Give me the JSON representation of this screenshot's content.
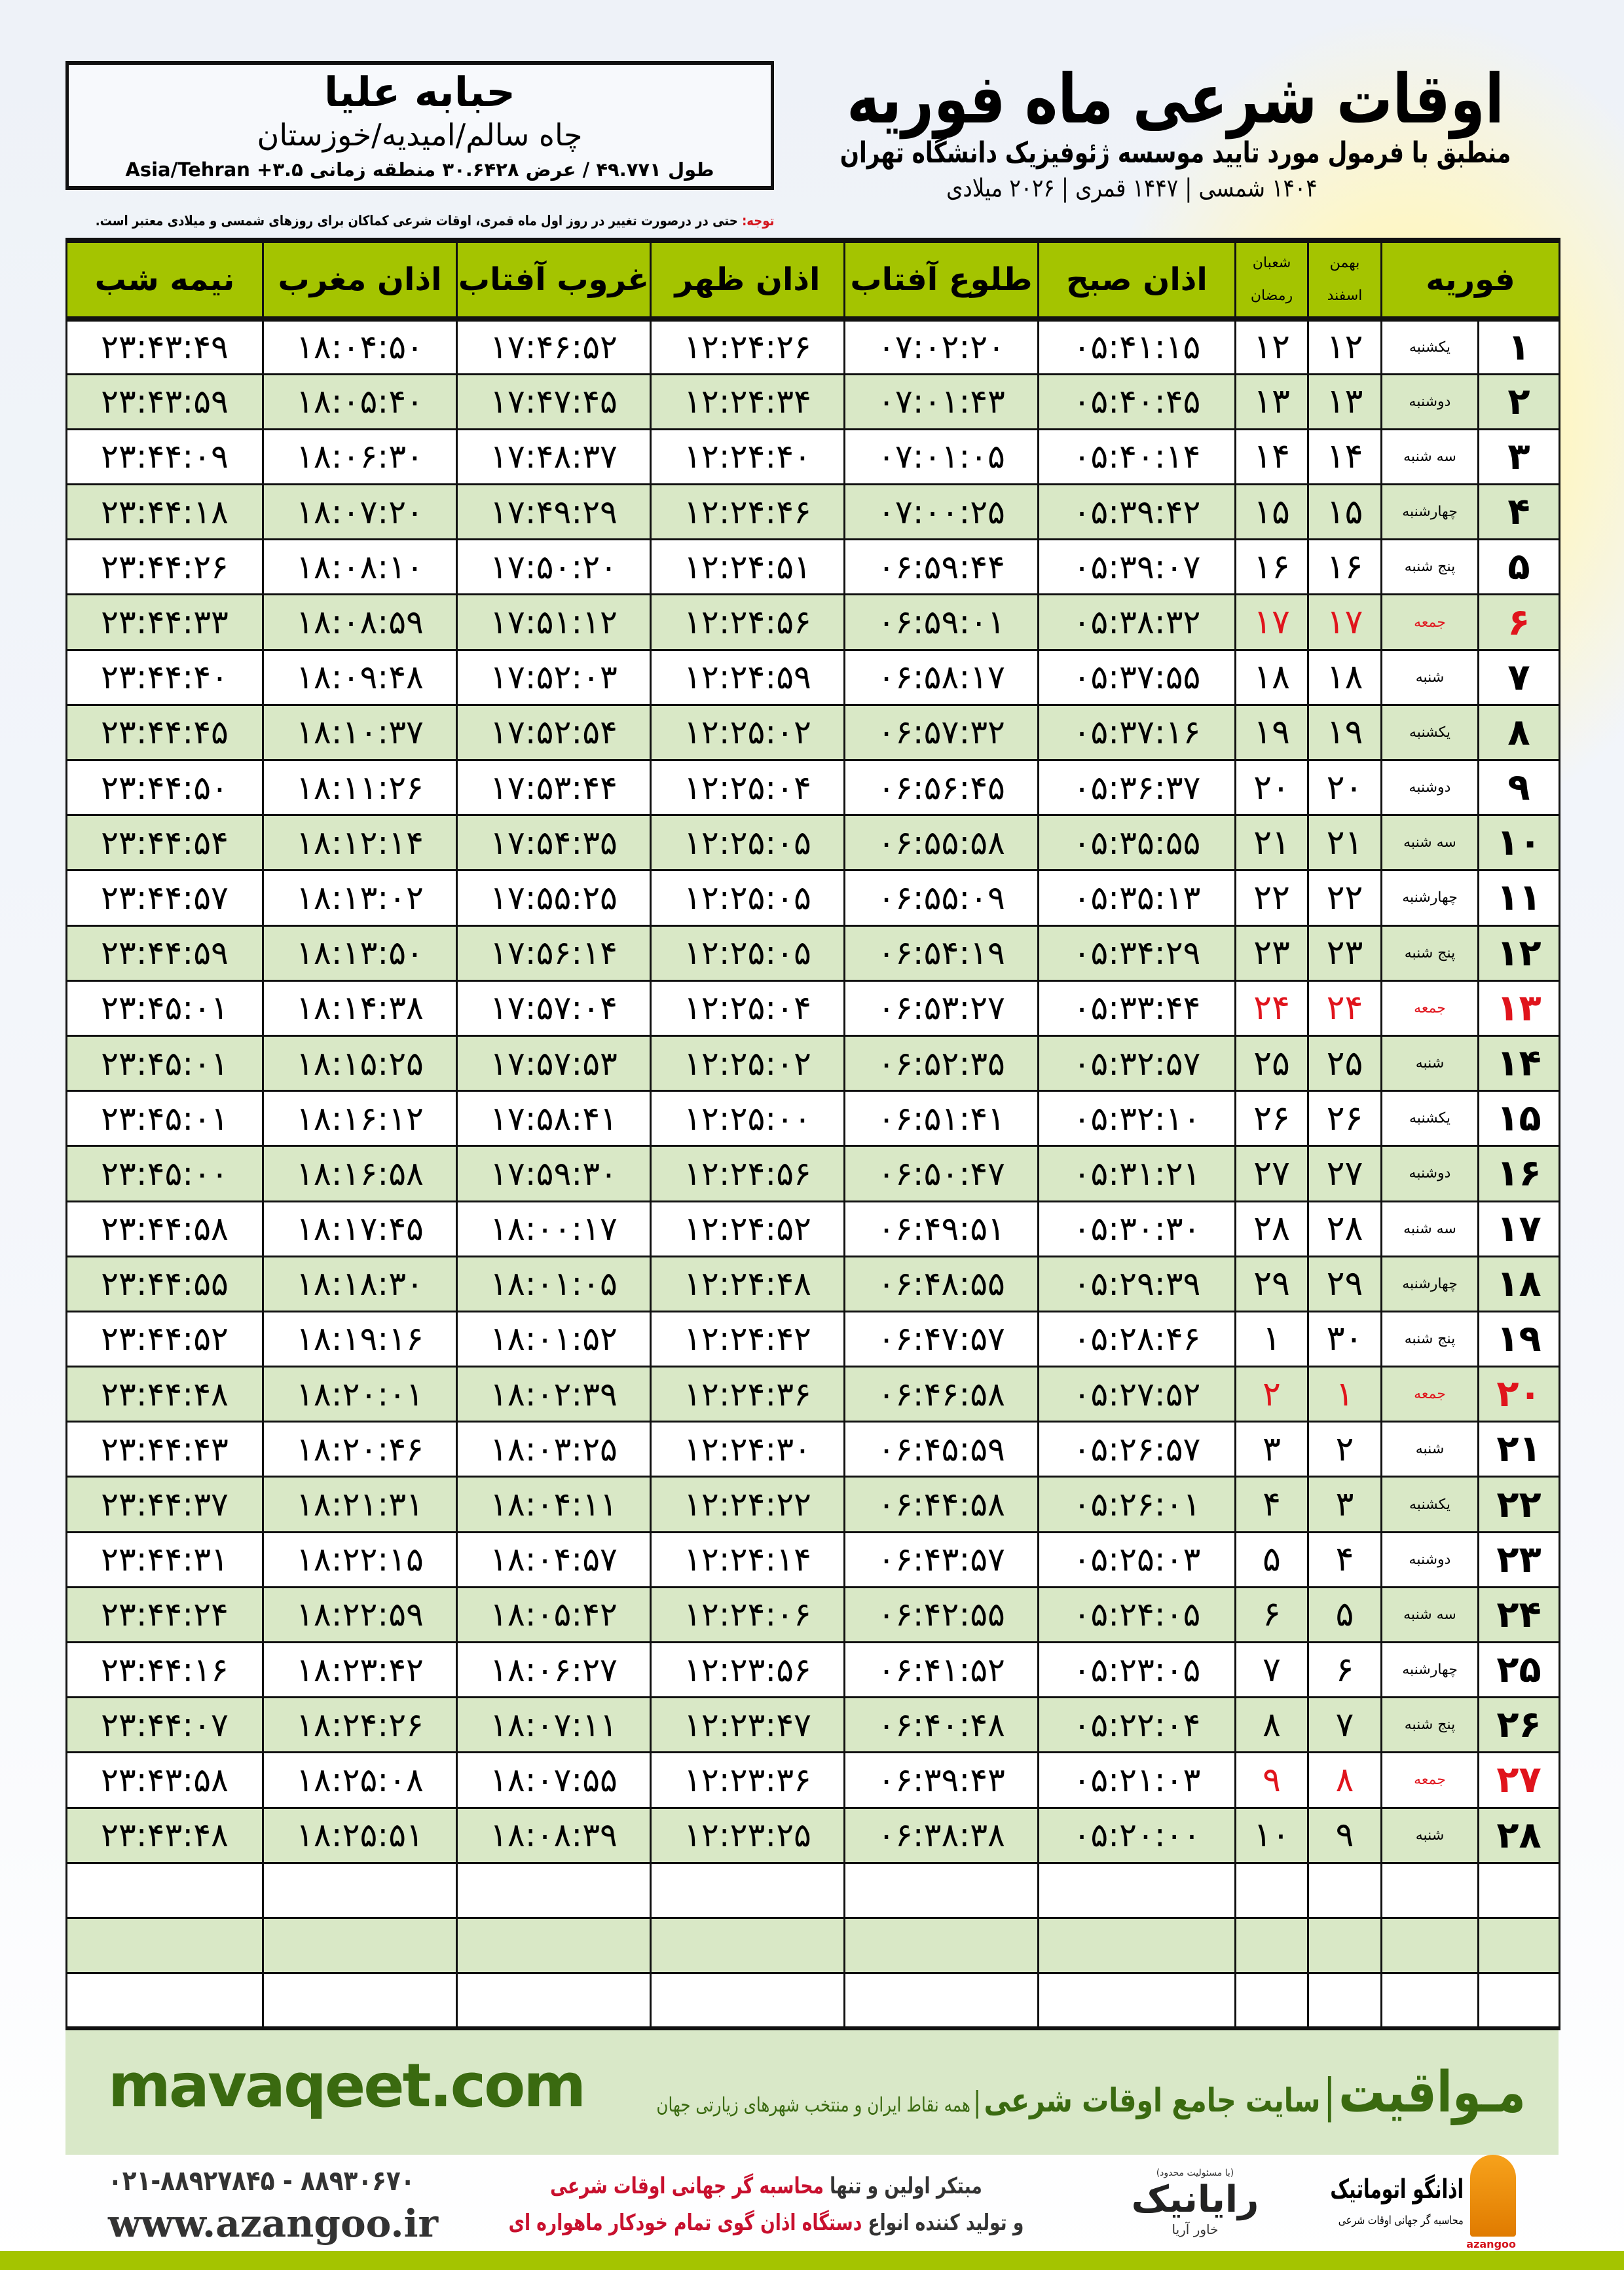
{
  "location": {
    "name": "حبابه علیا",
    "region": "چاه سالم/امیدیه/خوزستان",
    "coords": "طول ۴۹.۷۷۱ / عرض ۳۰.۶۴۲۸ منطقه زمانی ۳.۵+ Asia/Tehran"
  },
  "header": {
    "title": "اوقات شرعی ماه فوریه",
    "subtitle": "منطبق با فرمول مورد تایید موسسه ژئوفیزیک دانشگاه تهران",
    "dateline": "۱۴۰۴ شمسی | ۱۴۴۷ قمری | ۲۰۲۶ میلادی"
  },
  "note": {
    "label": "توجه:",
    "text": " حتی در درصورت تغییر در روز اول ماه قمری، اوقات شرعی کماکان برای روزهای شمسی و میلادی معتبر است."
  },
  "table": {
    "columns": {
      "month": "فوریه",
      "shamsi_top": "بهمن",
      "shamsi_bottom": "اسفند",
      "qamari_top": "شعبان",
      "qamari_bottom": "رمضان",
      "sobh": "اذان صبح",
      "tolu": "طلوع آفتاب",
      "zohr": "اذان ظهر",
      "ghorub": "غروب آفتاب",
      "maghrib": "اذان مغرب",
      "nimeshab": "نیمه شب"
    },
    "holiday_color": "#e0141c",
    "rows": [
      {
        "day": "۱",
        "weekday": "یکشنبه",
        "shamsi": "۱۲",
        "qamari": "۱۲",
        "times": [
          "۰۵:۴۱:۱۵",
          "۰۷:۰۲:۲۰",
          "۱۲:۲۴:۲۶",
          "۱۷:۴۶:۵۲",
          "۱۸:۰۴:۵۰",
          "۲۳:۴۳:۴۹"
        ]
      },
      {
        "day": "۲",
        "weekday": "دوشنبه",
        "shamsi": "۱۳",
        "qamari": "۱۳",
        "times": [
          "۰۵:۴۰:۴۵",
          "۰۷:۰۱:۴۳",
          "۱۲:۲۴:۳۴",
          "۱۷:۴۷:۴۵",
          "۱۸:۰۵:۴۰",
          "۲۳:۴۳:۵۹"
        ]
      },
      {
        "day": "۳",
        "weekday": "سه شنبه",
        "shamsi": "۱۴",
        "qamari": "۱۴",
        "times": [
          "۰۵:۴۰:۱۴",
          "۰۷:۰۱:۰۵",
          "۱۲:۲۴:۴۰",
          "۱۷:۴۸:۳۷",
          "۱۸:۰۶:۳۰",
          "۲۳:۴۴:۰۹"
        ]
      },
      {
        "day": "۴",
        "weekday": "چهارشنبه",
        "shamsi": "۱۵",
        "qamari": "۱۵",
        "times": [
          "۰۵:۳۹:۴۲",
          "۰۷:۰۰:۲۵",
          "۱۲:۲۴:۴۶",
          "۱۷:۴۹:۲۹",
          "۱۸:۰۷:۲۰",
          "۲۳:۴۴:۱۸"
        ]
      },
      {
        "day": "۵",
        "weekday": "پنج شنبه",
        "shamsi": "۱۶",
        "qamari": "۱۶",
        "times": [
          "۰۵:۳۹:۰۷",
          "۰۶:۵۹:۴۴",
          "۱۲:۲۴:۵۱",
          "۱۷:۵۰:۲۰",
          "۱۸:۰۸:۱۰",
          "۲۳:۴۴:۲۶"
        ]
      },
      {
        "day": "۶",
        "weekday": "جمعه",
        "shamsi": "۱۷",
        "qamari": "۱۷",
        "holiday": true,
        "times": [
          "۰۵:۳۸:۳۲",
          "۰۶:۵۹:۰۱",
          "۱۲:۲۴:۵۶",
          "۱۷:۵۱:۱۲",
          "۱۸:۰۸:۵۹",
          "۲۳:۴۴:۳۳"
        ]
      },
      {
        "day": "۷",
        "weekday": "شنبه",
        "shamsi": "۱۸",
        "qamari": "۱۸",
        "times": [
          "۰۵:۳۷:۵۵",
          "۰۶:۵۸:۱۷",
          "۱۲:۲۴:۵۹",
          "۱۷:۵۲:۰۳",
          "۱۸:۰۹:۴۸",
          "۲۳:۴۴:۴۰"
        ]
      },
      {
        "day": "۸",
        "weekday": "یکشنبه",
        "shamsi": "۱۹",
        "qamari": "۱۹",
        "times": [
          "۰۵:۳۷:۱۶",
          "۰۶:۵۷:۳۲",
          "۱۲:۲۵:۰۲",
          "۱۷:۵۲:۵۴",
          "۱۸:۱۰:۳۷",
          "۲۳:۴۴:۴۵"
        ]
      },
      {
        "day": "۹",
        "weekday": "دوشنبه",
        "shamsi": "۲۰",
        "qamari": "۲۰",
        "times": [
          "۰۵:۳۶:۳۷",
          "۰۶:۵۶:۴۵",
          "۱۲:۲۵:۰۴",
          "۱۷:۵۳:۴۴",
          "۱۸:۱۱:۲۶",
          "۲۳:۴۴:۵۰"
        ]
      },
      {
        "day": "۱۰",
        "weekday": "سه شنبه",
        "shamsi": "۲۱",
        "qamari": "۲۱",
        "times": [
          "۰۵:۳۵:۵۵",
          "۰۶:۵۵:۵۸",
          "۱۲:۲۵:۰۵",
          "۱۷:۵۴:۳۵",
          "۱۸:۱۲:۱۴",
          "۲۳:۴۴:۵۴"
        ]
      },
      {
        "day": "۱۱",
        "weekday": "چهارشنبه",
        "shamsi": "۲۲",
        "qamari": "۲۲",
        "times": [
          "۰۵:۳۵:۱۳",
          "۰۶:۵۵:۰۹",
          "۱۲:۲۵:۰۵",
          "۱۷:۵۵:۲۵",
          "۱۸:۱۳:۰۲",
          "۲۳:۴۴:۵۷"
        ]
      },
      {
        "day": "۱۲",
        "weekday": "پنج شنبه",
        "shamsi": "۲۳",
        "qamari": "۲۳",
        "times": [
          "۰۵:۳۴:۲۹",
          "۰۶:۵۴:۱۹",
          "۱۲:۲۵:۰۵",
          "۱۷:۵۶:۱۴",
          "۱۸:۱۳:۵۰",
          "۲۳:۴۴:۵۹"
        ]
      },
      {
        "day": "۱۳",
        "weekday": "جمعه",
        "shamsi": "۲۴",
        "qamari": "۲۴",
        "holiday": true,
        "times": [
          "۰۵:۳۳:۴۴",
          "۰۶:۵۳:۲۷",
          "۱۲:۲۵:۰۴",
          "۱۷:۵۷:۰۴",
          "۱۸:۱۴:۳۸",
          "۲۳:۴۵:۰۱"
        ]
      },
      {
        "day": "۱۴",
        "weekday": "شنبه",
        "shamsi": "۲۵",
        "qamari": "۲۵",
        "times": [
          "۰۵:۳۲:۵۷",
          "۰۶:۵۲:۳۵",
          "۱۲:۲۵:۰۲",
          "۱۷:۵۷:۵۳",
          "۱۸:۱۵:۲۵",
          "۲۳:۴۵:۰۱"
        ]
      },
      {
        "day": "۱۵",
        "weekday": "یکشنبه",
        "shamsi": "۲۶",
        "qamari": "۲۶",
        "times": [
          "۰۵:۳۲:۱۰",
          "۰۶:۵۱:۴۱",
          "۱۲:۲۵:۰۰",
          "۱۷:۵۸:۴۱",
          "۱۸:۱۶:۱۲",
          "۲۳:۴۵:۰۱"
        ]
      },
      {
        "day": "۱۶",
        "weekday": "دوشنبه",
        "shamsi": "۲۷",
        "qamari": "۲۷",
        "times": [
          "۰۵:۳۱:۲۱",
          "۰۶:۵۰:۴۷",
          "۱۲:۲۴:۵۶",
          "۱۷:۵۹:۳۰",
          "۱۸:۱۶:۵۸",
          "۲۳:۴۵:۰۰"
        ]
      },
      {
        "day": "۱۷",
        "weekday": "سه شنبه",
        "shamsi": "۲۸",
        "qamari": "۲۸",
        "times": [
          "۰۵:۳۰:۳۰",
          "۰۶:۴۹:۵۱",
          "۱۲:۲۴:۵۲",
          "۱۸:۰۰:۱۷",
          "۱۸:۱۷:۴۵",
          "۲۳:۴۴:۵۸"
        ]
      },
      {
        "day": "۱۸",
        "weekday": "چهارشنبه",
        "shamsi": "۲۹",
        "qamari": "۲۹",
        "times": [
          "۰۵:۲۹:۳۹",
          "۰۶:۴۸:۵۵",
          "۱۲:۲۴:۴۸",
          "۱۸:۰۱:۰۵",
          "۱۸:۱۸:۳۰",
          "۲۳:۴۴:۵۵"
        ]
      },
      {
        "day": "۱۹",
        "weekday": "پنج شنبه",
        "shamsi": "۳۰",
        "qamari": "۱",
        "times": [
          "۰۵:۲۸:۴۶",
          "۰۶:۴۷:۵۷",
          "۱۲:۲۴:۴۲",
          "۱۸:۰۱:۵۲",
          "۱۸:۱۹:۱۶",
          "۲۳:۴۴:۵۲"
        ]
      },
      {
        "day": "۲۰",
        "weekday": "جمعه",
        "shamsi": "۱",
        "qamari": "۲",
        "holiday": true,
        "times": [
          "۰۵:۲۷:۵۲",
          "۰۶:۴۶:۵۸",
          "۱۲:۲۴:۳۶",
          "۱۸:۰۲:۳۹",
          "۱۸:۲۰:۰۱",
          "۲۳:۴۴:۴۸"
        ]
      },
      {
        "day": "۲۱",
        "weekday": "شنبه",
        "shamsi": "۲",
        "qamari": "۳",
        "times": [
          "۰۵:۲۶:۵۷",
          "۰۶:۴۵:۵۹",
          "۱۲:۲۴:۳۰",
          "۱۸:۰۳:۲۵",
          "۱۸:۲۰:۴۶",
          "۲۳:۴۴:۴۳"
        ]
      },
      {
        "day": "۲۲",
        "weekday": "یکشنبه",
        "shamsi": "۳",
        "qamari": "۴",
        "times": [
          "۰۵:۲۶:۰۱",
          "۰۶:۴۴:۵۸",
          "۱۲:۲۴:۲۲",
          "۱۸:۰۴:۱۱",
          "۱۸:۲۱:۳۱",
          "۲۳:۴۴:۳۷"
        ]
      },
      {
        "day": "۲۳",
        "weekday": "دوشنبه",
        "shamsi": "۴",
        "qamari": "۵",
        "times": [
          "۰۵:۲۵:۰۳",
          "۰۶:۴۳:۵۷",
          "۱۲:۲۴:۱۴",
          "۱۸:۰۴:۵۷",
          "۱۸:۲۲:۱۵",
          "۲۳:۴۴:۳۱"
        ]
      },
      {
        "day": "۲۴",
        "weekday": "سه شنبه",
        "shamsi": "۵",
        "qamari": "۶",
        "times": [
          "۰۵:۲۴:۰۵",
          "۰۶:۴۲:۵۵",
          "۱۲:۲۴:۰۶",
          "۱۸:۰۵:۴۲",
          "۱۸:۲۲:۵۹",
          "۲۳:۴۴:۲۴"
        ]
      },
      {
        "day": "۲۵",
        "weekday": "چهارشنبه",
        "shamsi": "۶",
        "qamari": "۷",
        "times": [
          "۰۵:۲۳:۰۵",
          "۰۶:۴۱:۵۲",
          "۱۲:۲۳:۵۶",
          "۱۸:۰۶:۲۷",
          "۱۸:۲۳:۴۲",
          "۲۳:۴۴:۱۶"
        ]
      },
      {
        "day": "۲۶",
        "weekday": "پنج شنبه",
        "shamsi": "۷",
        "qamari": "۸",
        "times": [
          "۰۵:۲۲:۰۴",
          "۰۶:۴۰:۴۸",
          "۱۲:۲۳:۴۷",
          "۱۸:۰۷:۱۱",
          "۱۸:۲۴:۲۶",
          "۲۳:۴۴:۰۷"
        ]
      },
      {
        "day": "۲۷",
        "weekday": "جمعه",
        "shamsi": "۸",
        "qamari": "۹",
        "holiday": true,
        "times": [
          "۰۵:۲۱:۰۳",
          "۰۶:۳۹:۴۳",
          "۱۲:۲۳:۳۶",
          "۱۸:۰۷:۵۵",
          "۱۸:۲۵:۰۸",
          "۲۳:۴۳:۵۸"
        ]
      },
      {
        "day": "۲۸",
        "weekday": "شنبه",
        "shamsi": "۹",
        "qamari": "۱۰",
        "times": [
          "۰۵:۲۰:۰۰",
          "۰۶:۳۸:۳۸",
          "۱۲:۲۳:۲۵",
          "۱۸:۰۸:۳۹",
          "۱۸:۲۵:۵۱",
          "۲۳:۴۳:۴۸"
        ]
      }
    ]
  },
  "footer": {
    "site_logo": "مـواقیت",
    "site_slogan": "سایت جامع اوقات شرعی",
    "site_sub": "همه نقاط ایران و منتخب شهرهای زیارتی جهان",
    "site_url": "mavaqeet.com",
    "phone": "۰۲۱-۸۸۹۲۷۸۴۵ - ۸۸۹۳۰۶۷۰",
    "web": "www.azangoo.ir",
    "promo_1a": "مبتکر اولین و تنها ",
    "promo_1b": "محاسبه گر جهانی اوقات شرعی",
    "promo_2a": "و تولید کننده انواع ",
    "promo_2b": "دستگاه اذان گوی تمام خودکار ماهواره ای",
    "rayanik_note": "(با مسئولیت محدود)",
    "rayanik_name": "رایانیک",
    "rayanik_sub": "خاور آریا",
    "azangoo_name": "اذانگو اتوماتیک",
    "azangoo_sub": "محاسبه گر جهانی اوقات شرعی",
    "azangoo_latin": "azangoo",
    "brand_green": "#3a6a10",
    "accent_green": "#a4c400"
  }
}
